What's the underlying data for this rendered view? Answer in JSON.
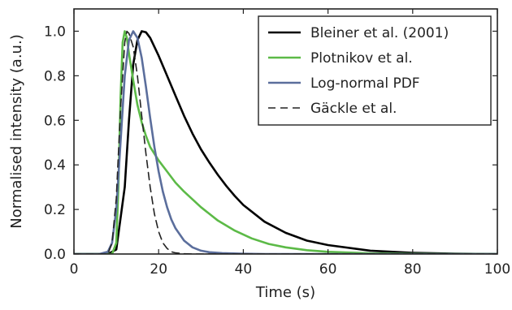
{
  "chart_data": {
    "type": "line",
    "title": "",
    "xlabel": "Time (s)",
    "ylabel": "Normalised intensity (a.u.)",
    "xlim": [
      0,
      100
    ],
    "ylim": [
      0,
      1.1
    ],
    "x_ticks": [
      0,
      20,
      40,
      60,
      80,
      100
    ],
    "x_tick_labels": [
      "0",
      "20",
      "40",
      "60",
      "80",
      "100"
    ],
    "y_ticks": [
      0.0,
      0.2,
      0.4,
      0.6,
      0.8,
      1.0
    ],
    "y_tick_labels": [
      "0.0",
      "0.2",
      "0.4",
      "0.6",
      "0.8",
      "1.0"
    ],
    "grid": false,
    "legend_position": "top-right",
    "series": [
      {
        "name": "Bleiner et al. (2001)",
        "color": "#000000",
        "dash": "solid",
        "x": [
          0,
          8,
          10,
          12,
          13,
          14,
          15,
          16,
          17,
          18,
          19,
          20,
          22,
          24,
          26,
          28,
          30,
          32,
          34,
          36,
          38,
          40,
          45,
          50,
          55,
          60,
          70,
          80,
          90,
          100
        ],
        "y": [
          0,
          0,
          0.02,
          0.3,
          0.6,
          0.85,
          0.96,
          1.0,
          0.995,
          0.97,
          0.93,
          0.89,
          0.8,
          0.71,
          0.62,
          0.54,
          0.47,
          0.41,
          0.355,
          0.305,
          0.26,
          0.22,
          0.145,
          0.095,
          0.06,
          0.04,
          0.015,
          0.005,
          0.002,
          0.0
        ]
      },
      {
        "name": "Plotnikov et al.",
        "color": "#5cba47",
        "dash": "solid",
        "x": [
          0,
          9,
          10,
          10.5,
          11,
          11.5,
          12,
          12.5,
          13,
          14,
          15,
          16,
          17,
          18,
          20,
          22,
          24,
          26,
          28,
          30,
          34,
          38,
          42,
          46,
          50,
          55,
          60,
          70,
          80,
          100
        ],
        "y": [
          0,
          0,
          0.05,
          0.3,
          0.7,
          0.95,
          1.0,
          0.97,
          0.9,
          0.78,
          0.67,
          0.59,
          0.53,
          0.48,
          0.42,
          0.37,
          0.32,
          0.28,
          0.245,
          0.21,
          0.15,
          0.105,
          0.07,
          0.045,
          0.03,
          0.017,
          0.01,
          0.003,
          0.001,
          0.0
        ]
      },
      {
        "name": "Log-normal PDF",
        "color": "#5b6e9c",
        "dash": "solid",
        "x": [
          0,
          6,
          8,
          9,
          10,
          11,
          12,
          13,
          14,
          15,
          16,
          17,
          18,
          19,
          20,
          21,
          22,
          23,
          24,
          26,
          28,
          30,
          32,
          35,
          40,
          45,
          50,
          60,
          100
        ],
        "y": [
          0,
          0,
          0.01,
          0.05,
          0.2,
          0.5,
          0.8,
          0.96,
          1.0,
          0.97,
          0.88,
          0.75,
          0.61,
          0.48,
          0.37,
          0.28,
          0.21,
          0.155,
          0.115,
          0.06,
          0.03,
          0.015,
          0.008,
          0.004,
          0.001,
          0.0,
          0.0,
          0.0,
          0.0
        ]
      },
      {
        "name": "Gäckle et al.",
        "color": "#222222",
        "dash": "dashed",
        "x": [
          0,
          8,
          9,
          10,
          11,
          12,
          12.5,
          13,
          14,
          15,
          16,
          17,
          18,
          19,
          20,
          21,
          22,
          23,
          24,
          26,
          28,
          30,
          100
        ],
        "y": [
          0,
          0,
          0.05,
          0.25,
          0.65,
          0.95,
          1.0,
          0.99,
          0.93,
          0.8,
          0.62,
          0.45,
          0.3,
          0.18,
          0.1,
          0.05,
          0.025,
          0.01,
          0.005,
          0.001,
          0.0,
          0.0,
          0.0
        ]
      }
    ]
  }
}
